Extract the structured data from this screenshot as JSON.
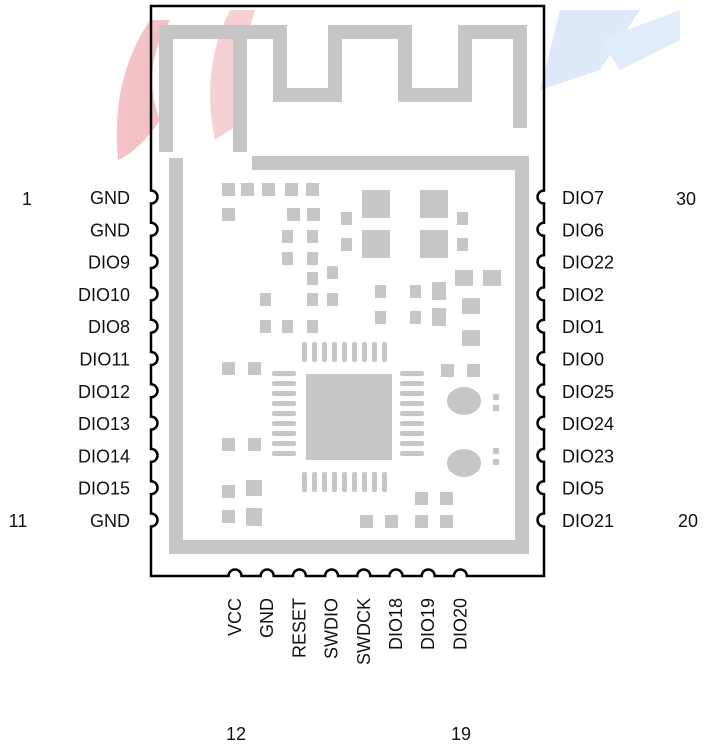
{
  "colors": {
    "silk": "#c6c6c6",
    "outline": "#000000",
    "text": "#111111",
    "wm_red": "#f3b8bd",
    "wm_blue": "#d8e6f8"
  },
  "pins": {
    "left": [
      "GND",
      "GND",
      "DIO9",
      "DIO10",
      "DIO8",
      "DIO11",
      "DIO12",
      "DIO13",
      "DIO14",
      "DIO15",
      "GND"
    ],
    "right": [
      "DIO7",
      "DIO6",
      "DIO22",
      "DIO2",
      "DIO1",
      "DIO0",
      "DIO25",
      "DIO24",
      "DIO23",
      "DIO5",
      "DIO21"
    ],
    "bottom": [
      "VCC",
      "GND",
      "RESET",
      "SWDIO",
      "SWDCK",
      "DIO18",
      "DIO19",
      "DIO20"
    ]
  },
  "numbers": {
    "left_first": "1",
    "left_last": "11",
    "right_first": "30",
    "right_last": "20",
    "bottom_first": "12",
    "bottom_last": "19"
  }
}
